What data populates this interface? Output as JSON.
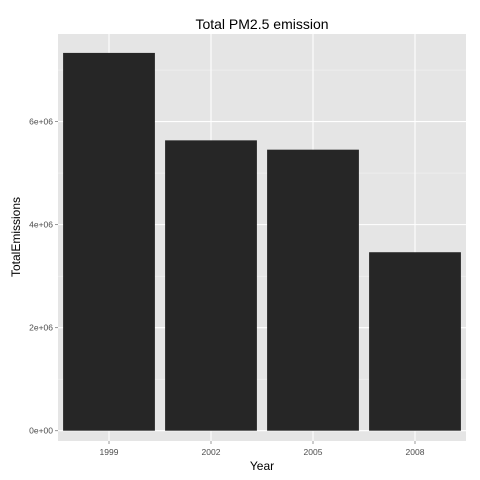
{
  "chart_data": {
    "type": "bar",
    "title": "Total PM2.5 emission",
    "xlabel": "Year",
    "ylabel": "TotalEmissions",
    "categories": [
      "1999",
      "2002",
      "2005",
      "2008"
    ],
    "values": [
      7332967,
      5635780,
      5454703,
      3464206
    ],
    "ylim": [
      -200000,
      7700000
    ],
    "yticks": [
      0,
      2000000,
      4000000,
      6000000
    ],
    "ytick_labels": [
      "0e+00",
      "2e+06",
      "4e+06",
      "6e+06"
    ],
    "bar_color": "#262626",
    "panel_color": "#e5e5e5",
    "grid": true,
    "legend": "none"
  }
}
